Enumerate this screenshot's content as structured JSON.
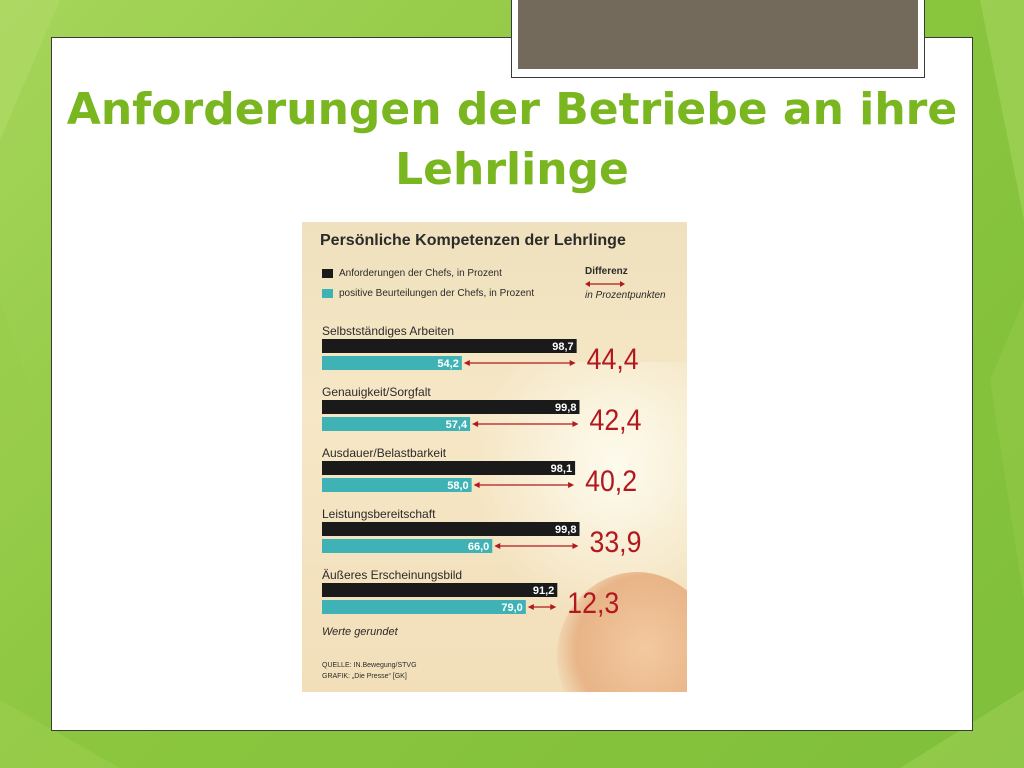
{
  "slide": {
    "title": "Anforderungen der Betriebe an ihre Lehrlinge"
  },
  "chart_data": {
    "type": "bar",
    "title": "Persönliche Kompetenzen der Lehrlinge",
    "categories": [
      "Selbstständiges Arbeiten",
      "Genauigkeit/Sorgfalt",
      "Ausdauer/Belastbarkeit",
      "Leistungsbereitschaft",
      "Äußeres Erscheinungsbild"
    ],
    "series": [
      {
        "name": "Anforderungen der Chefs, in Prozent",
        "values": [
          98.7,
          99.8,
          98.1,
          99.8,
          91.2
        ],
        "labels": [
          "98,7",
          "99,8",
          "98,1",
          "99,8",
          "91,2"
        ],
        "color": "#1a1a1a"
      },
      {
        "name": "positive Beurteilungen der Chefs, in Prozent",
        "values": [
          54.2,
          57.4,
          58.0,
          66.0,
          79.0
        ],
        "labels": [
          "54,2",
          "57,4",
          "58,0",
          "66,0",
          "79,0"
        ],
        "color": "#3fb2b6"
      }
    ],
    "differences": [
      44.4,
      42.4,
      40.2,
      33.9,
      12.3
    ],
    "difference_labels": [
      "44,4",
      "42,4",
      "40,2",
      "33,9",
      "12,3"
    ],
    "difference_header": "Differenz",
    "difference_unit": "in Prozentpunkten",
    "difference_color": "#b2191f",
    "xlim": [
      0,
      100
    ],
    "note": "Werte gerundet",
    "source": "QUELLE: IN.Bewegung/STVG",
    "graphic": "GRAFIK: „Die Presse“ [GK]"
  }
}
